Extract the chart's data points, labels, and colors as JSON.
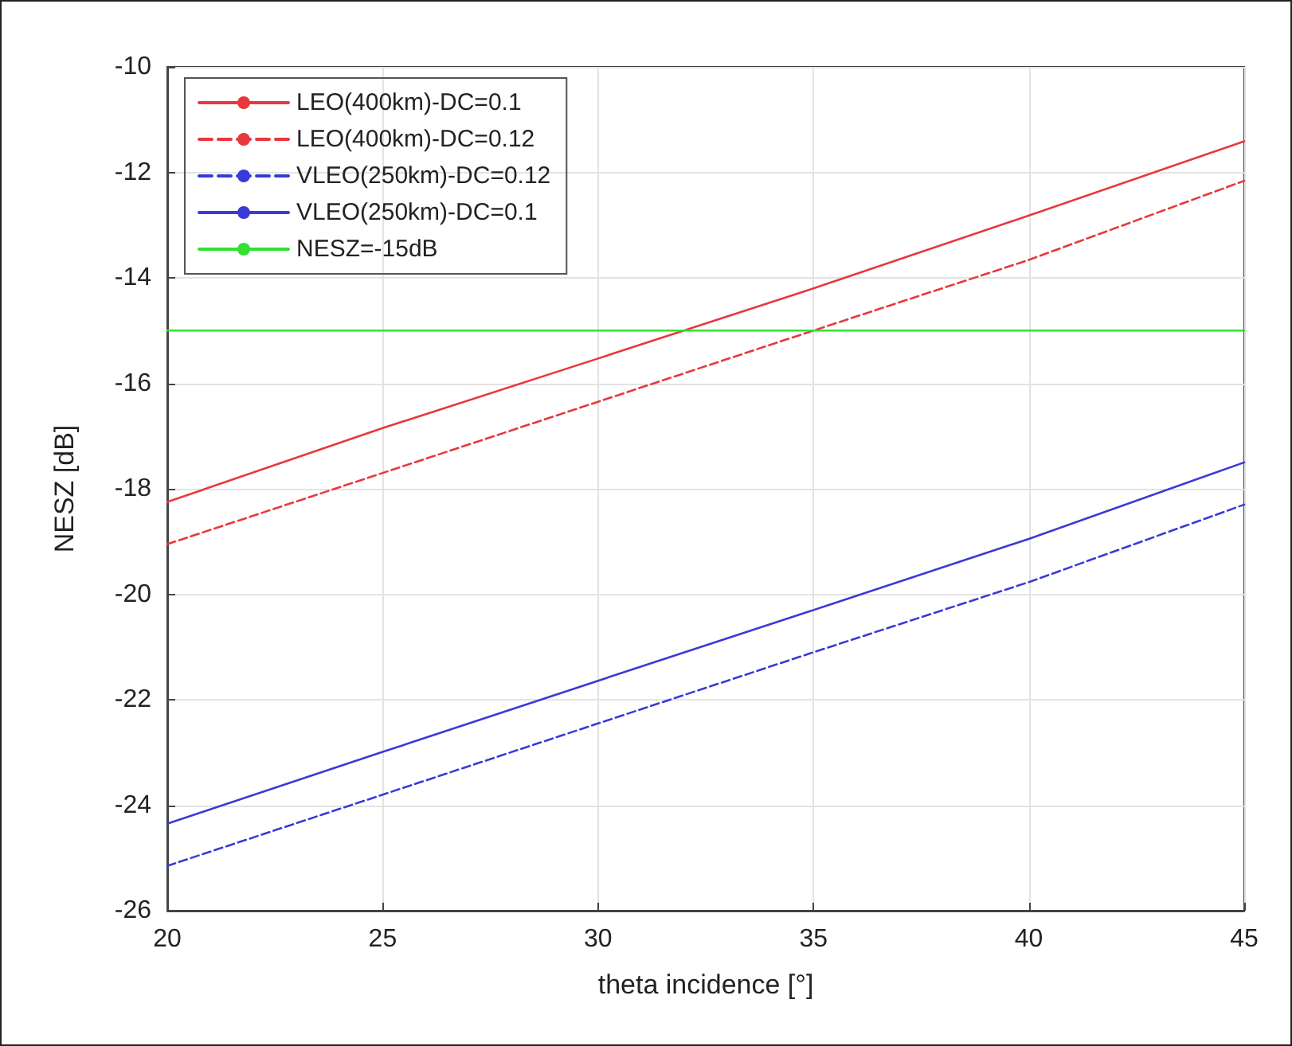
{
  "chart_data": {
    "type": "line",
    "xlabel": "theta incidence [°]",
    "ylabel": "NESZ [dB]",
    "x": [
      20,
      25,
      30,
      35,
      40,
      45
    ],
    "series": [
      {
        "name": "LEO(400km)-DC=0.1",
        "color": "#e8383d",
        "line_style": "solid",
        "values": [
          -18.25,
          -16.85,
          -15.53,
          -14.2,
          -12.82,
          -11.41
        ]
      },
      {
        "name": "LEO(400km)-DC=0.12",
        "color": "#e8383d",
        "line_style": "dashed",
        "values": [
          -19.05,
          -17.7,
          -16.35,
          -15.0,
          -13.66,
          -12.16
        ]
      },
      {
        "name": "VLEO(250km)-DC=0.12",
        "color": "#3a3ad8",
        "line_style": "dashed",
        "values": [
          -25.15,
          -23.8,
          -22.45,
          -21.1,
          -19.77,
          -18.3
        ]
      },
      {
        "name": "VLEO(250km)-DC=0.1",
        "color": "#3a3ad8",
        "line_style": "solid",
        "values": [
          -24.35,
          -22.99,
          -21.64,
          -20.3,
          -18.95,
          -17.5
        ]
      },
      {
        "name": "NESZ=-15dB",
        "color": "#33e033",
        "line_style": "solid",
        "x": [
          20,
          45
        ],
        "values": [
          -15,
          -15
        ]
      }
    ],
    "xlim": [
      20,
      45
    ],
    "xticks": [
      20,
      25,
      30,
      35,
      40,
      45
    ],
    "ylim": [
      -26,
      -10
    ],
    "yticks": [
      -26,
      -24,
      -22,
      -20,
      -18,
      -16,
      -14,
      -12,
      -10
    ],
    "grid": true,
    "legend": "top left",
    "marker": "none"
  }
}
